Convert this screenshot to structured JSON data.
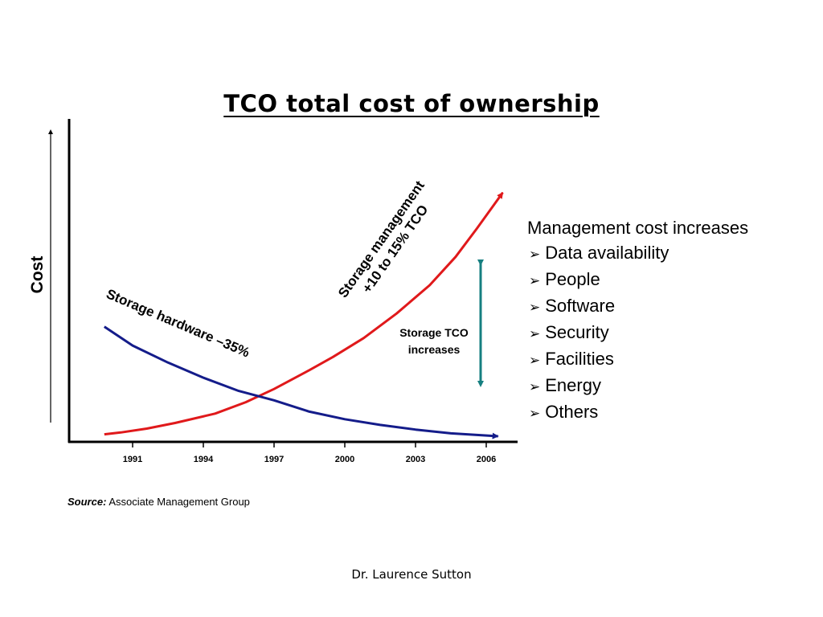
{
  "title": "TCO total cost of ownership",
  "chart_data": {
    "type": "line",
    "title": "",
    "ylabel": "Cost",
    "xlabel": "",
    "x_ticks": [
      "1991",
      "1994",
      "1997",
      "2000",
      "2003",
      "2006"
    ],
    "series": [
      {
        "name": "Storage management +10 to 15% TCO",
        "color": "#e0191b",
        "values": [
          [
            1989.8,
            0.04
          ],
          [
            1990.5,
            0.05
          ],
          [
            1991.6,
            0.07
          ],
          [
            1992.8,
            0.1
          ],
          [
            1994.5,
            0.15
          ],
          [
            1995.8,
            0.21
          ],
          [
            1997.0,
            0.28
          ],
          [
            1998.5,
            0.38
          ],
          [
            1999.5,
            0.45
          ],
          [
            2000.8,
            0.55
          ],
          [
            2002.2,
            0.68
          ],
          [
            2003.6,
            0.83
          ],
          [
            2004.7,
            0.98
          ],
          [
            2005.6,
            1.13
          ],
          [
            2006.7,
            1.32
          ]
        ]
      },
      {
        "name": "Storage hardware –35%",
        "color": "#141c8a",
        "values": [
          [
            1989.8,
            0.61
          ],
          [
            1991.0,
            0.51
          ],
          [
            1992.5,
            0.42
          ],
          [
            1994.0,
            0.34
          ],
          [
            1995.5,
            0.27
          ],
          [
            1997.0,
            0.22
          ],
          [
            1998.5,
            0.16
          ],
          [
            2000.0,
            0.12
          ],
          [
            2001.5,
            0.09
          ],
          [
            2003.0,
            0.065
          ],
          [
            2004.5,
            0.045
          ],
          [
            2006.5,
            0.03
          ]
        ]
      }
    ],
    "annotations": {
      "hardware_label": "Storage hardware –35%",
      "management_label_line1": "Storage management",
      "management_label_line2": "+10 to 15% TCO",
      "tco_label_line1": "Storage TCO",
      "tco_label_line2": "increases"
    }
  },
  "bullets": {
    "heading": "Management cost increases",
    "items": [
      "Data availability",
      "People",
      "Software",
      "Security",
      "Facilities",
      "Energy",
      "Others"
    ]
  },
  "source": {
    "label": "Source:",
    "text": "Associate Management Group"
  },
  "footer": "Dr. Laurence Sutton"
}
